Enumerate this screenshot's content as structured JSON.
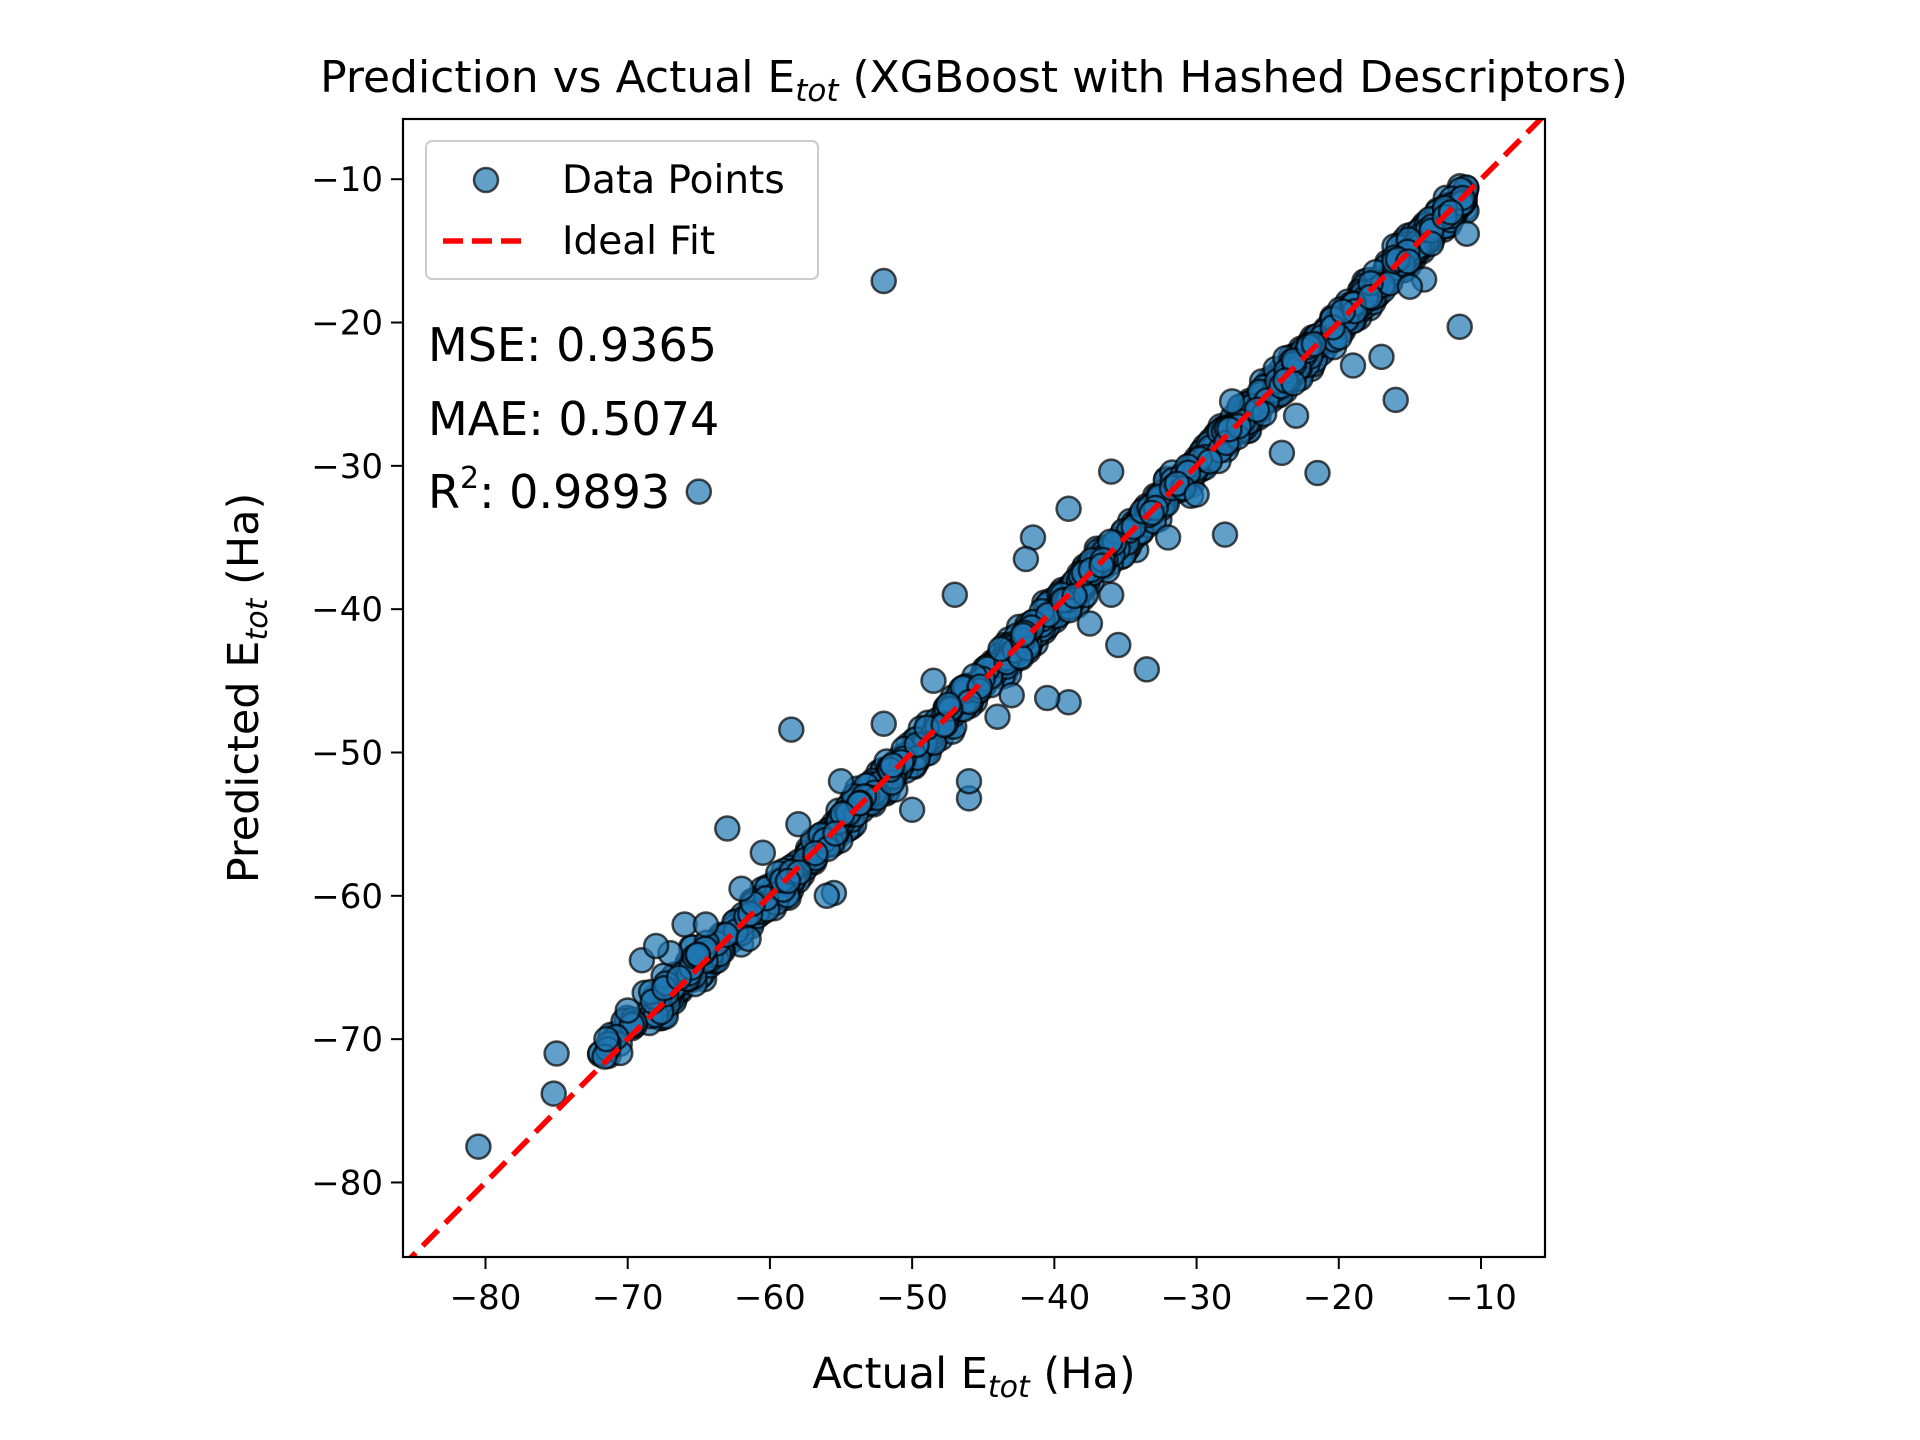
{
  "chart_data": {
    "type": "scatter",
    "title": {
      "prefix": "Prediction vs Actual E",
      "sub": "tot",
      "suffix": " (XGBoost with Hashed Descriptors)"
    },
    "xlabel": {
      "prefix": "Actual E",
      "sub": "tot",
      "suffix": " (Ha)"
    },
    "ylabel": {
      "prefix": "Predicted E",
      "sub": "tot",
      "suffix": " (Ha)"
    },
    "xlim": [
      -85.8,
      -5.5
    ],
    "ylim": [
      -85.2,
      -5.8
    ],
    "xticks": [
      -80,
      -70,
      -60,
      -50,
      -40,
      -30,
      -20,
      -10
    ],
    "yticks": [
      -80,
      -70,
      -60,
      -50,
      -40,
      -30,
      -20,
      -10
    ],
    "tick_labels": {
      "-80": "−80",
      "-70": "−70",
      "-60": "−60",
      "-50": "−50",
      "-40": "−40",
      "-30": "−30",
      "-20": "−20",
      "-10": "−10"
    },
    "grid": false,
    "legend": {
      "placement": "top-left",
      "entries": [
        {
          "label": "Data Points",
          "kind": "marker"
        },
        {
          "label": "Ideal Fit",
          "kind": "dashed-line"
        }
      ]
    },
    "stats": {
      "mse": "MSE: 0.9365",
      "mae": "MAE: 0.5074",
      "r2_prefix": "R",
      "r2_sup": "2",
      "r2_value": ": 0.9893"
    },
    "series": [
      {
        "name": "Data Points",
        "color": "#1f77b4",
        "edge_color": "#000000",
        "outliers": [
          [
            -52,
            -17.1
          ],
          [
            -65,
            -31.8
          ],
          [
            -58.5,
            -48.4
          ],
          [
            -80.5,
            -77.5
          ],
          [
            -75,
            -71
          ],
          [
            -75.2,
            -73.8
          ],
          [
            -11.5,
            -20.3
          ],
          [
            -17,
            -22.4
          ],
          [
            -16,
            -25.4
          ],
          [
            -24,
            -29.1
          ],
          [
            -28,
            -34.8
          ],
          [
            -39,
            -46.5
          ],
          [
            -40.5,
            -46.2
          ],
          [
            -33.5,
            -44.2
          ],
          [
            -46,
            -53.2
          ],
          [
            -46,
            -52
          ],
          [
            -63,
            -55.3
          ],
          [
            -66,
            -62
          ],
          [
            -55.5,
            -59.8
          ],
          [
            -60.5,
            -57
          ],
          [
            -39,
            -33
          ],
          [
            -41.5,
            -35
          ],
          [
            -42,
            -36.5
          ],
          [
            -36,
            -30.4
          ],
          [
            -35.5,
            -42.5
          ],
          [
            -47,
            -39
          ],
          [
            -48.5,
            -45
          ],
          [
            -21.5,
            -30.5
          ],
          [
            -14,
            -17
          ],
          [
            -13.5,
            -14.5
          ],
          [
            -15,
            -17.5
          ],
          [
            -11,
            -13.8
          ],
          [
            -32,
            -35
          ],
          [
            -30,
            -32
          ],
          [
            -27.5,
            -25.5
          ],
          [
            -23,
            -26.5
          ],
          [
            -19,
            -23
          ],
          [
            -37.5,
            -41
          ],
          [
            -44,
            -47.5
          ],
          [
            -52,
            -48
          ],
          [
            -55,
            -52
          ],
          [
            -58,
            -55
          ],
          [
            -62,
            -59.5
          ],
          [
            -64.5,
            -62
          ],
          [
            -67,
            -64
          ],
          [
            -70,
            -68
          ],
          [
            -71.5,
            -70
          ],
          [
            -69,
            -64.5
          ],
          [
            -68,
            -63.5
          ],
          [
            -61.5,
            -63
          ],
          [
            -56,
            -60
          ],
          [
            -50,
            -54
          ],
          [
            -43,
            -46
          ],
          [
            -36,
            -39
          ]
        ]
      }
    ],
    "ideal_fit": {
      "color": "#ff0000",
      "from": [
        -86,
        -86
      ],
      "to": [
        -5,
        -5
      ]
    }
  }
}
